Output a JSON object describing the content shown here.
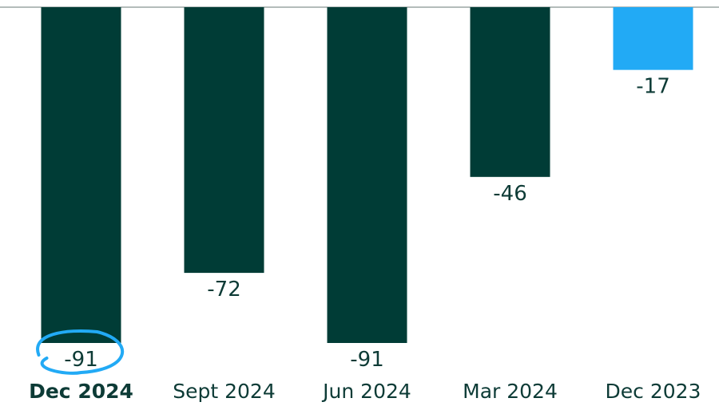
{
  "chart_data": {
    "type": "bar",
    "categories": [
      "Dec 2024",
      "Sept 2024",
      "Jun 2024",
      "Mar 2024",
      "Dec 2023"
    ],
    "values": [
      -91,
      -72,
      -91,
      -46,
      -17
    ],
    "value_labels": [
      "-91",
      "-72",
      "-91",
      "-46",
      "-17"
    ],
    "ylim": [
      -91,
      0
    ],
    "grid": false,
    "legend": "none",
    "highlighted_category": "Dec 2024",
    "colors": {
      "bar_default": "#003c36",
      "bar_latest": "#22aaf5",
      "circle_annotation": "#22aaf5",
      "text": "#0d3b36",
      "zero_line": "#9aa5a3"
    },
    "bar_colors": [
      "#003c36",
      "#003c36",
      "#003c36",
      "#003c36",
      "#22aaf5"
    ]
  }
}
